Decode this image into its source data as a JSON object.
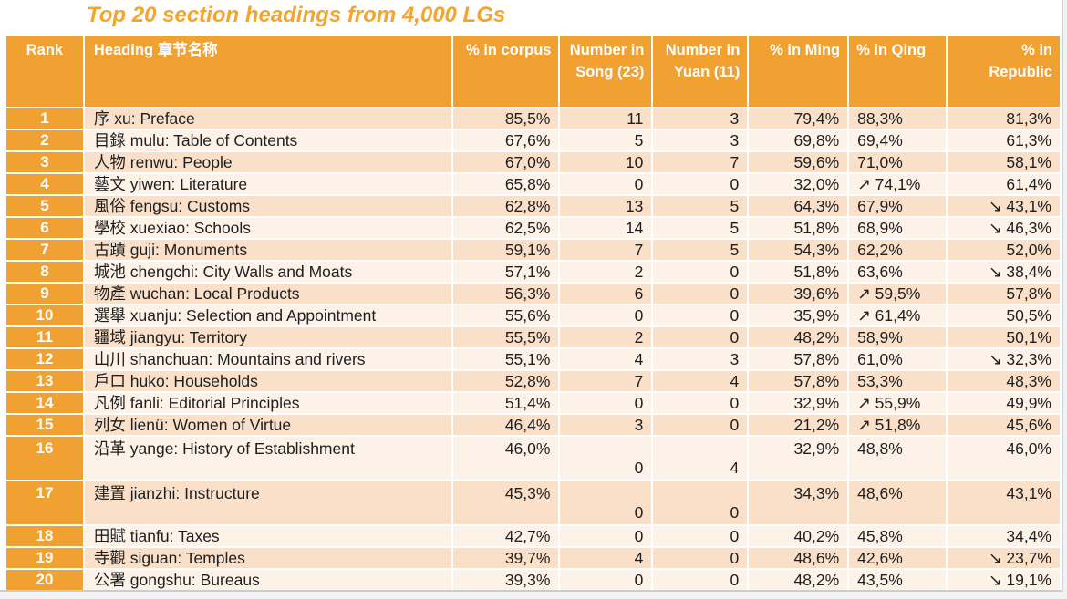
{
  "page": {
    "title": "Top 20 section headings from 4,000 LGs",
    "colors": {
      "accent_orange": "#F0A132",
      "title_orange": "#F5A42C",
      "row_dark_peach": "#FAE0C8",
      "row_light_cream": "#FDF2E7"
    }
  },
  "table": {
    "columns": [
      {
        "key": "rank",
        "label": "Rank",
        "align": "center"
      },
      {
        "key": "heading",
        "label": "Heading 章节名称",
        "align": "left"
      },
      {
        "key": "corpus",
        "label": "% in corpus",
        "align": "right"
      },
      {
        "key": "song",
        "label": "Number in Song (23)",
        "align": "right"
      },
      {
        "key": "yuan",
        "label": "Number in Yuan (11)",
        "align": "right"
      },
      {
        "key": "ming",
        "label": "% in Ming",
        "align": "right"
      },
      {
        "key": "qing",
        "label": "% in Qing",
        "align": "left"
      },
      {
        "key": "republic",
        "label": "% in Republic",
        "align": "right"
      }
    ],
    "rows": [
      {
        "rank": "1",
        "heading": "序 xu: Preface",
        "corpus": "85,5%",
        "song": "11",
        "yuan": "3",
        "ming": "79,4%",
        "qing": "88,3%",
        "republic": "81,3%"
      },
      {
        "rank": "2",
        "heading": "目錄 mulu: Table of Contents",
        "spell": "mulu",
        "corpus": "67,6%",
        "song": "5",
        "yuan": "3",
        "ming": "69,8%",
        "qing": "69,4%",
        "republic": "61,3%"
      },
      {
        "rank": "3",
        "heading": "人物 renwu: People",
        "corpus": "67,0%",
        "song": "10",
        "yuan": "7",
        "ming": "59,6%",
        "qing": "71,0%",
        "republic": "58,1%"
      },
      {
        "rank": "4",
        "heading": "藝文 yiwen: Literature",
        "corpus": "65,8%",
        "song": "0",
        "yuan": "0",
        "ming": "32,0%",
        "qing": "↗ 74,1%",
        "republic": "61,4%"
      },
      {
        "rank": "5",
        "heading": "風俗 fengsu: Customs",
        "corpus": "62,8%",
        "song": "13",
        "yuan": "5",
        "ming": "64,3%",
        "qing": "67,9%",
        "republic": "↘ 43,1%"
      },
      {
        "rank": "6",
        "heading": "學校 xuexiao: Schools",
        "corpus": "62,5%",
        "song": "14",
        "yuan": "5",
        "ming": "51,8%",
        "qing": "68,9%",
        "republic": "↘ 46,3%"
      },
      {
        "rank": "7",
        "heading": "古蹟 guji: Monuments",
        "corpus": "59,1%",
        "song": "7",
        "yuan": "5",
        "ming": "54,3%",
        "qing": "62,2%",
        "republic": "52,0%"
      },
      {
        "rank": "8",
        "heading": "城池 chengchi: City Walls and Moats",
        "corpus": "57,1%",
        "song": "2",
        "yuan": "0",
        "ming": "51,8%",
        "qing": "63,6%",
        "republic": "↘ 38,4%"
      },
      {
        "rank": "9",
        "heading": "物產 wuchan: Local Products",
        "corpus": "56,3%",
        "song": "6",
        "yuan": "0",
        "ming": "39,6%",
        "qing": "↗ 59,5%",
        "republic": "57,8%"
      },
      {
        "rank": "10",
        "heading": "選舉 xuanju: Selection and Appointment",
        "corpus": "55,6%",
        "song": "0",
        "yuan": "0",
        "ming": "35,9%",
        "qing": "↗ 61,4%",
        "republic": "50,5%"
      },
      {
        "rank": "11",
        "heading": "疆域 jiangyu: Territory",
        "corpus": "55,5%",
        "song": "2",
        "yuan": "0",
        "ming": "48,2%",
        "qing": "58,9%",
        "republic": "50,1%"
      },
      {
        "rank": "12",
        "heading": "山川 shanchuan: Mountains and rivers",
        "corpus": "55,1%",
        "song": "4",
        "yuan": "3",
        "ming": "57,8%",
        "qing": "61,0%",
        "republic": "↘ 32,3%"
      },
      {
        "rank": "13",
        "heading": "戶口 huko: Households",
        "corpus": "52,8%",
        "song": "7",
        "yuan": "4",
        "ming": "57,8%",
        "qing": "53,3%",
        "republic": "48,3%"
      },
      {
        "rank": "14",
        "heading": "凡例 fanli: Editorial Principles",
        "corpus": "51,4%",
        "song": "0",
        "yuan": "0",
        "ming": "32,9%",
        "qing": "↗ 55,9%",
        "republic": "49,9%"
      },
      {
        "rank": "15",
        "heading": "列女 lienü: Women of Virtue",
        "corpus": "46,4%",
        "song": "3",
        "yuan": "0",
        "ming": "21,2%",
        "qing": "↗ 51,8%",
        "republic": "45,6%"
      },
      {
        "rank": "16",
        "heading": "沿革 yange: History of Establishment",
        "tall": true,
        "corpus": "46,0%",
        "song": "0",
        "yuan": "4",
        "ming": "32,9%",
        "qing": "48,8%",
        "republic": "46,0%"
      },
      {
        "rank": "17",
        "heading": "建置  jianzhi: Instructure",
        "tall": true,
        "corpus": "45,3%",
        "song": "0",
        "yuan": "0",
        "ming": "34,3%",
        "qing": "48,6%",
        "republic": "43,1%"
      },
      {
        "rank": "18",
        "heading": "田賦 tianfu: Taxes",
        "corpus": "42,7%",
        "song": "0",
        "yuan": "0",
        "ming": "40,2%",
        "qing": "45,8%",
        "republic": "34,4%"
      },
      {
        "rank": "19",
        "heading": "寺觀 siguan: Temples",
        "corpus": "39,7%",
        "song": "4",
        "yuan": "0",
        "ming": "48,6%",
        "qing": "42,6%",
        "republic": "↘ 23,7%"
      },
      {
        "rank": "20",
        "heading": "公署 gongshu: Bureaus",
        "corpus": "39,3%",
        "song": "0",
        "yuan": "0",
        "ming": "48,2%",
        "qing": "43,5%",
        "republic": "↘ 19,1%"
      }
    ]
  }
}
